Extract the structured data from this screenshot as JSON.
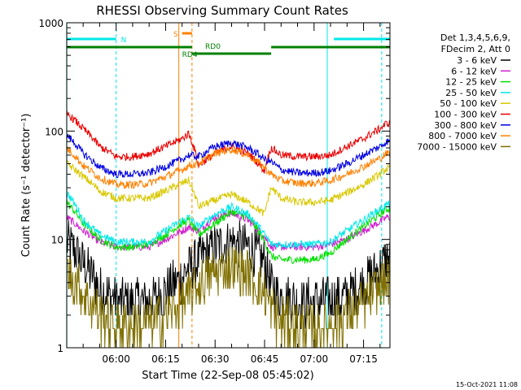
{
  "chart_data": {
    "type": "line",
    "title": "RHESSI Observing Summary Count Rates",
    "xlabel": "Start Time (22-Sep-08 05:45:02)",
    "ylabel": "Count Rate (s⁻¹ detector⁻¹)",
    "yscale": "log",
    "ylim": [
      1,
      1000
    ],
    "y_ticks": [
      1,
      10,
      100,
      1000
    ],
    "y_tick_labels": [
      "1",
      "10",
      "100",
      "1000"
    ],
    "xlim_minutes": [
      -14.97,
      83.0
    ],
    "x_ticks_minutes": [
      0,
      15,
      30,
      45,
      60,
      75
    ],
    "x_tick_labels": [
      "06:00",
      "06:15",
      "06:30",
      "06:45",
      "07:00",
      "07:15"
    ],
    "legend_header": [
      "Det 1,3,4,5,6,9,",
      "FDecim 2, Att 0"
    ],
    "legend_placement": "right",
    "series": [
      {
        "name": "3 - 6 keV",
        "color": "#000000",
        "x": [
          -15,
          -10,
          -5,
          0,
          5,
          10,
          15,
          20,
          22,
          25,
          30,
          35,
          40,
          45,
          47,
          50,
          55,
          60,
          65,
          70,
          75,
          80,
          82
        ],
        "y": [
          9.5,
          6,
          3.5,
          2.7,
          2.7,
          2.7,
          3.3,
          4.5,
          5.5,
          6.5,
          8.5,
          9.5,
          8.5,
          6.2,
          3.6,
          3.0,
          2.7,
          2.7,
          2.7,
          3.0,
          4.0,
          5.5,
          6.5
        ]
      },
      {
        "name": "6 - 12 keV",
        "color": "#d020d0",
        "x": [
          -15,
          -10,
          -5,
          0,
          5,
          10,
          15,
          20,
          22,
          25,
          30,
          35,
          40,
          45,
          47,
          50,
          55,
          60,
          65,
          70,
          75,
          80,
          82
        ],
        "y": [
          16,
          12,
          9.5,
          8.5,
          8.5,
          8.5,
          10,
          12,
          13,
          12,
          16,
          17.5,
          15,
          10.5,
          8.5,
          8.5,
          8.5,
          8.5,
          9,
          10,
          12,
          14.5,
          16
        ]
      },
      {
        "name": "12 - 25 keV",
        "color": "#00e000",
        "x": [
          -15,
          -10,
          -5,
          0,
          5,
          10,
          15,
          20,
          22,
          25,
          30,
          35,
          40,
          45,
          47,
          50,
          55,
          60,
          65,
          70,
          75,
          80,
          82
        ],
        "y": [
          22,
          14,
          10,
          8.5,
          8.5,
          9,
          11,
          14,
          15,
          11,
          14,
          18,
          16,
          9.5,
          7,
          6.5,
          6.5,
          6.5,
          7.5,
          10,
          13,
          17,
          19
        ]
      },
      {
        "name": "25 - 50 keV",
        "color": "#00e8e8",
        "x": [
          -15,
          -10,
          -5,
          0,
          5,
          10,
          15,
          20,
          22,
          25,
          30,
          35,
          40,
          45,
          47,
          50,
          55,
          60,
          65,
          70,
          75,
          80,
          82
        ],
        "y": [
          27,
          15,
          11,
          9.5,
          9.5,
          9.5,
          12,
          15,
          16,
          13,
          17,
          20,
          17,
          11,
          9,
          9,
          9,
          9,
          9.5,
          12,
          15,
          19,
          21
        ]
      },
      {
        "name": "50 - 100 keV",
        "color": "#d8c800",
        "x": [
          -15,
          -10,
          -5,
          0,
          5,
          10,
          15,
          20,
          22,
          25,
          30,
          35,
          40,
          45,
          47,
          50,
          55,
          60,
          65,
          70,
          75,
          80,
          82
        ],
        "y": [
          50,
          38,
          28,
          24,
          24,
          24,
          28,
          33,
          35,
          20,
          23,
          26,
          22,
          17,
          30,
          24,
          22,
          22,
          23,
          27,
          32,
          40,
          45
        ]
      },
      {
        "name": "100 - 300 keV",
        "color": "#e80000",
        "x": [
          -15,
          -10,
          -5,
          0,
          5,
          10,
          15,
          20,
          22,
          25,
          30,
          35,
          40,
          45,
          47,
          50,
          55,
          60,
          65,
          70,
          75,
          80,
          82
        ],
        "y": [
          145,
          105,
          72,
          58,
          58,
          62,
          72,
          85,
          95,
          48,
          62,
          72,
          62,
          43,
          70,
          60,
          58,
          58,
          60,
          72,
          85,
          105,
          118
        ]
      },
      {
        "name": "300 - 800 keV",
        "color": "#0000e0",
        "x": [
          -15,
          -10,
          -5,
          0,
          5,
          10,
          15,
          20,
          22,
          25,
          30,
          35,
          40,
          45,
          47,
          50,
          55,
          60,
          65,
          70,
          75,
          80,
          82
        ],
        "y": [
          92,
          62,
          46,
          40,
          40,
          41,
          47,
          55,
          60,
          58,
          72,
          78,
          70,
          55,
          52,
          44,
          41,
          41,
          43,
          50,
          60,
          72,
          80
        ]
      },
      {
        "name": "800 - 7000 keV",
        "color": "#ff8000",
        "x": [
          -15,
          -10,
          -5,
          0,
          5,
          10,
          15,
          20,
          22,
          25,
          30,
          35,
          40,
          45,
          47,
          50,
          55,
          60,
          65,
          70,
          75,
          80,
          82
        ],
        "y": [
          70,
          48,
          37,
          32,
          32,
          33,
          38,
          44,
          48,
          50,
          62,
          68,
          60,
          46,
          40,
          35,
          33,
          33,
          35,
          40,
          47,
          56,
          62
        ]
      },
      {
        "name": "7000 - 15000 keV",
        "color": "#807000",
        "x": [
          -15,
          -10,
          -5,
          0,
          5,
          10,
          15,
          20,
          22,
          25,
          30,
          35,
          40,
          45,
          47,
          50,
          55,
          60,
          65,
          70,
          75,
          80,
          82
        ],
        "y": [
          5,
          3.2,
          2.0,
          1.6,
          1.6,
          1.7,
          2.0,
          2.6,
          3.0,
          3.8,
          5.0,
          5.6,
          4.8,
          3.2,
          2.3,
          1.8,
          1.6,
          1.5,
          1.7,
          2.0,
          2.6,
          3.6,
          4.2
        ]
      }
    ],
    "annotations": [
      {
        "text": "N",
        "color": "#00e8e8",
        "x_minutes": 0
      },
      {
        "text": "S",
        "color": "#ff8000",
        "x_minutes": 20
      },
      {
        "text": "RD0",
        "color": "#008000",
        "x_minutes": 26
      },
      {
        "text": "RD4",
        "color": "#008000",
        "x_minutes": 19
      }
    ],
    "status_bars": [
      {
        "name": "night",
        "color": "#00e8e8",
        "segments": [
          [
            -15,
            0
          ],
          [
            66,
            83
          ]
        ]
      },
      {
        "name": "saa",
        "color": "#ff8000",
        "segments": [
          [
            20,
            23
          ]
        ]
      },
      {
        "name": "decim_upper",
        "color": "#008000",
        "segments": [
          [
            -15,
            23
          ],
          [
            47,
            83
          ]
        ]
      },
      {
        "name": "decim_lower",
        "color": "#008000",
        "segments": [
          [
            23,
            47
          ]
        ]
      }
    ],
    "vlines": [
      {
        "x_minutes": -15,
        "color": "#00e8e8",
        "style": "solid"
      },
      {
        "x_minutes": 0,
        "color": "#00e8e8",
        "style": "dashed"
      },
      {
        "x_minutes": 19,
        "color": "#ff8000",
        "style": "solid"
      },
      {
        "x_minutes": 23,
        "color": "#ff8000",
        "style": "dashed"
      },
      {
        "x_minutes": 64,
        "color": "#00e8e8",
        "style": "solid"
      },
      {
        "x_minutes": 80.5,
        "color": "#00e8e8",
        "style": "dashed"
      }
    ],
    "grid": false
  },
  "footer_timestamp": "15-Oct-2021 11:08"
}
